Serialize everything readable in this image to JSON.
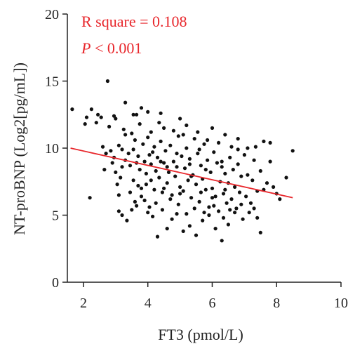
{
  "chart_data": {
    "type": "scatter",
    "xlabel": "FT3 (pmol/L)",
    "ylabel": "NT-proBNP (Log2[pg/mL])",
    "xlim": [
      1.5,
      10
    ],
    "ylim": [
      0,
      20
    ],
    "xticks": [
      2,
      4,
      6,
      8,
      10
    ],
    "yticks": [
      0,
      5,
      10,
      15,
      20
    ],
    "grid": false,
    "colors": {
      "points": "#111111",
      "fit": "#e8262b",
      "annotation": "#e8262b",
      "axis": "#222222"
    },
    "annotations": {
      "r_square": "R square = 0.108",
      "p_symbol": "P",
      "p_rest": " < 0.001"
    },
    "fit_line": {
      "x": [
        1.6,
        8.5
      ],
      "y": [
        10.0,
        6.3
      ]
    },
    "points": [
      [
        1.65,
        12.9
      ],
      [
        2.1,
        12.3
      ],
      [
        2.2,
        6.3
      ],
      [
        2.25,
        12.9
      ],
      [
        2.45,
        12.5
      ],
      [
        2.55,
        12.3
      ],
      [
        2.75,
        15.0
      ],
      [
        2.8,
        11.6
      ],
      [
        2.95,
        12.4
      ],
      [
        3.0,
        12.2
      ],
      [
        3.3,
        13.4
      ],
      [
        3.3,
        11.0
      ],
      [
        3.55,
        12.5
      ],
      [
        3.65,
        12.5
      ],
      [
        3.8,
        13.0
      ],
      [
        4.0,
        12.7
      ],
      [
        4.4,
        12.6
      ],
      [
        4.5,
        11.5
      ],
      [
        5.0,
        12.2
      ],
      [
        5.2,
        11.7
      ],
      [
        6.0,
        11.5
      ],
      [
        6.4,
        11.0
      ],
      [
        6.8,
        10.7
      ],
      [
        7.1,
        10.0
      ],
      [
        7.6,
        10.5
      ],
      [
        7.8,
        10.4
      ],
      [
        8.5,
        9.8
      ],
      [
        8.3,
        7.8
      ],
      [
        8.1,
        6.2
      ],
      [
        7.5,
        3.7
      ],
      [
        7.4,
        4.8
      ],
      [
        2.05,
        11.8
      ],
      [
        2.4,
        11.9
      ],
      [
        2.6,
        10.1
      ],
      [
        2.85,
        9.8
      ],
      [
        2.9,
        8.9
      ],
      [
        3.0,
        8.2
      ],
      [
        3.05,
        7.3
      ],
      [
        3.1,
        6.5
      ],
      [
        3.1,
        5.3
      ],
      [
        3.2,
        5.0
      ],
      [
        3.35,
        4.6
      ],
      [
        3.5,
        5.4
      ],
      [
        3.6,
        6.0
      ],
      [
        3.7,
        7.2
      ],
      [
        3.8,
        7.0
      ],
      [
        3.9,
        6.1
      ],
      [
        4.05,
        5.6
      ],
      [
        4.15,
        4.9
      ],
      [
        4.3,
        3.4
      ],
      [
        4.6,
        4.0
      ],
      [
        4.75,
        4.7
      ],
      [
        4.9,
        5.1
      ],
      [
        5.1,
        3.8
      ],
      [
        5.3,
        4.2
      ],
      [
        5.5,
        3.5
      ],
      [
        5.7,
        4.6
      ],
      [
        5.9,
        5.0
      ],
      [
        6.1,
        4.0
      ],
      [
        6.3,
        3.1
      ],
      [
        6.5,
        4.3
      ],
      [
        6.7,
        5.2
      ],
      [
        6.9,
        5.8
      ],
      [
        7.3,
        5.5
      ],
      [
        3.3,
        9.1
      ],
      [
        3.4,
        9.6
      ],
      [
        3.45,
        8.7
      ],
      [
        3.55,
        9.9
      ],
      [
        3.6,
        10.6
      ],
      [
        3.7,
        9.4
      ],
      [
        3.75,
        8.4
      ],
      [
        3.85,
        10.3
      ],
      [
        3.9,
        9.0
      ],
      [
        3.95,
        8.1
      ],
      [
        4.0,
        10.8
      ],
      [
        4.05,
        9.5
      ],
      [
        4.1,
        8.8
      ],
      [
        4.1,
        7.6
      ],
      [
        4.2,
        10.1
      ],
      [
        4.2,
        6.9
      ],
      [
        4.25,
        8.3
      ],
      [
        4.3,
        9.3
      ],
      [
        4.35,
        7.8
      ],
      [
        4.4,
        10.5
      ],
      [
        4.45,
        6.7
      ],
      [
        4.5,
        8.9
      ],
      [
        4.55,
        9.8
      ],
      [
        4.6,
        7.4
      ],
      [
        4.65,
        8.2
      ],
      [
        4.7,
        10.2
      ],
      [
        4.75,
        6.5
      ],
      [
        4.8,
        9.0
      ],
      [
        4.85,
        7.9
      ],
      [
        4.9,
        8.6
      ],
      [
        4.95,
        10.9
      ],
      [
        5.0,
        7.1
      ],
      [
        5.05,
        9.4
      ],
      [
        5.1,
        6.8
      ],
      [
        5.15,
        8.5
      ],
      [
        5.2,
        10.0
      ],
      [
        5.25,
        7.6
      ],
      [
        5.3,
        9.2
      ],
      [
        5.35,
        6.3
      ],
      [
        5.4,
        8.0
      ],
      [
        5.45,
        10.7
      ],
      [
        5.5,
        7.3
      ],
      [
        5.55,
        9.6
      ],
      [
        5.6,
        6.0
      ],
      [
        5.65,
        8.7
      ],
      [
        5.7,
        7.7
      ],
      [
        5.75,
        10.3
      ],
      [
        5.8,
        6.9
      ],
      [
        5.85,
        9.1
      ],
      [
        5.9,
        5.6
      ],
      [
        5.95,
        8.2
      ],
      [
        6.0,
        7.0
      ],
      [
        6.05,
        9.7
      ],
      [
        6.1,
        6.4
      ],
      [
        6.15,
        8.9
      ],
      [
        6.2,
        5.3
      ],
      [
        6.25,
        7.5
      ],
      [
        6.3,
        9.0
      ],
      [
        6.35,
        6.6
      ],
      [
        6.4,
        8.1
      ],
      [
        6.45,
        5.9
      ],
      [
        6.5,
        7.4
      ],
      [
        6.55,
        9.3
      ],
      [
        6.6,
        6.2
      ],
      [
        6.65,
        8.4
      ],
      [
        6.7,
        7.1
      ],
      [
        6.75,
        5.5
      ],
      [
        6.8,
        8.8
      ],
      [
        6.85,
        6.7
      ],
      [
        6.9,
        7.9
      ],
      [
        7.0,
        9.5
      ],
      [
        7.05,
        6.4
      ],
      [
        7.1,
        8.0
      ],
      [
        7.2,
        5.9
      ],
      [
        7.25,
        7.6
      ],
      [
        7.3,
        9.1
      ],
      [
        7.4,
        6.8
      ],
      [
        7.5,
        8.3
      ],
      [
        7.6,
        6.9
      ],
      [
        7.7,
        7.4
      ],
      [
        7.8,
        9.0
      ],
      [
        7.9,
        7.1
      ],
      [
        8.0,
        6.6
      ],
      [
        2.95,
        9.3
      ],
      [
        3.1,
        10.2
      ],
      [
        3.2,
        8.6
      ],
      [
        3.25,
        11.4
      ],
      [
        3.15,
        7.8
      ],
      [
        2.7,
        9.6
      ],
      [
        2.65,
        8.4
      ],
      [
        3.5,
        11.1
      ],
      [
        3.75,
        11.8
      ],
      [
        4.1,
        11.2
      ],
      [
        4.35,
        11.9
      ],
      [
        4.8,
        11.3
      ],
      [
        5.1,
        11.0
      ],
      [
        5.55,
        11.2
      ],
      [
        5.85,
        10.6
      ],
      [
        6.2,
        10.4
      ],
      [
        6.6,
        10.1
      ],
      [
        3.45,
        6.7
      ],
      [
        3.65,
        5.7
      ],
      [
        3.8,
        6.4
      ],
      [
        4.0,
        5.2
      ],
      [
        4.25,
        5.9
      ],
      [
        4.45,
        5.4
      ],
      [
        4.7,
        6.2
      ],
      [
        4.95,
        5.8
      ],
      [
        5.2,
        5.1
      ],
      [
        5.45,
        5.5
      ],
      [
        5.75,
        5.2
      ],
      [
        6.05,
        5.7
      ],
      [
        6.35,
        4.8
      ],
      [
        6.55,
        5.4
      ],
      [
        6.95,
        4.7
      ],
      [
        7.15,
        5.2
      ],
      [
        3.55,
        7.6
      ],
      [
        3.95,
        7.3
      ],
      [
        4.5,
        7.0
      ],
      [
        5.0,
        6.6
      ],
      [
        5.35,
        7.9
      ],
      [
        5.65,
        6.7
      ],
      [
        6.0,
        6.3
      ],
      [
        6.4,
        6.9
      ],
      [
        3.2,
        9.9
      ],
      [
        3.65,
        8.9
      ],
      [
        4.15,
        9.7
      ],
      [
        4.6,
        8.6
      ],
      [
        5.3,
        8.8
      ],
      [
        5.8,
        8.4
      ],
      [
        6.3,
        8.6
      ],
      [
        6.8,
        9.9
      ],
      [
        7.35,
        10.1
      ],
      [
        4.4,
        9.0
      ],
      [
        4.9,
        9.6
      ],
      [
        5.6,
        9.9
      ]
    ]
  }
}
